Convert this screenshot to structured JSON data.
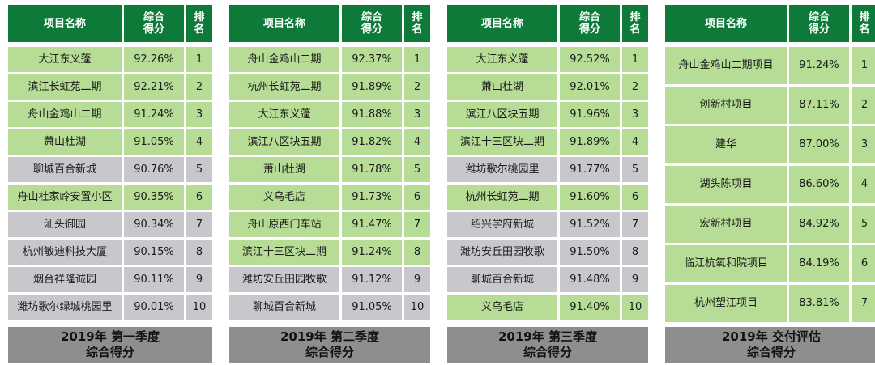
{
  "panels": [
    {
      "header": {
        "name": "项目名称",
        "score": "综合\n得分",
        "rank": "排\n名"
      },
      "rows": [
        {
          "name": "大江东义蓬",
          "score": "92.26%",
          "rank": "1",
          "color": "green"
        },
        {
          "name": "滨江长虹苑二期",
          "score": "92.21%",
          "rank": "2",
          "color": "green"
        },
        {
          "name": "舟山金鸡山二期",
          "score": "91.24%",
          "rank": "3",
          "color": "green"
        },
        {
          "name": "萧山杜湖",
          "score": "91.05%",
          "rank": "4",
          "color": "green"
        },
        {
          "name": "聊城百合新城",
          "score": "90.76%",
          "rank": "5",
          "color": "gray"
        },
        {
          "name": "舟山杜家岭安置小区",
          "score": "90.35%",
          "rank": "6",
          "color": "green"
        },
        {
          "name": "汕头御园",
          "score": "90.34%",
          "rank": "7",
          "color": "gray"
        },
        {
          "name": "杭州敏迪科技大厦",
          "score": "90.15%",
          "rank": "8",
          "color": "gray"
        },
        {
          "name": "烟台祥隆诚园",
          "score": "90.11%",
          "rank": "9",
          "color": "gray"
        },
        {
          "name": "潍坊歌尔绿城桃园里",
          "score": "90.01%",
          "rank": "10",
          "color": "gray"
        }
      ],
      "footer": {
        "line1": "2019年 第一季度",
        "line2": "综合得分"
      }
    },
    {
      "header": {
        "name": "项目名称",
        "score": "综合\n得分",
        "rank": "排\n名"
      },
      "rows": [
        {
          "name": "舟山金鸡山二期",
          "score": "92.37%",
          "rank": "1",
          "color": "green"
        },
        {
          "name": "杭州长虹苑二期",
          "score": "91.89%",
          "rank": "2",
          "color": "green"
        },
        {
          "name": "大江东义蓬",
          "score": "91.88%",
          "rank": "3",
          "color": "green"
        },
        {
          "name": "滨江八区块五期",
          "score": "91.82%",
          "rank": "4",
          "color": "green"
        },
        {
          "name": "萧山杜湖",
          "score": "91.78%",
          "rank": "5",
          "color": "green"
        },
        {
          "name": "义乌毛店",
          "score": "91.73%",
          "rank": "6",
          "color": "green"
        },
        {
          "name": "舟山原西门车站",
          "score": "91.47%",
          "rank": "7",
          "color": "green"
        },
        {
          "name": "滨江十三区块二期",
          "score": "91.24%",
          "rank": "8",
          "color": "green"
        },
        {
          "name": "潍坊安丘田园牧歌",
          "score": "91.12%",
          "rank": "9",
          "color": "gray"
        },
        {
          "name": "聊城百合新城",
          "score": "91.05%",
          "rank": "10",
          "color": "gray"
        }
      ],
      "footer": {
        "line1": "2019年 第二季度",
        "line2": "综合得分"
      }
    },
    {
      "header": {
        "name": "项目名称",
        "score": "综合\n得分",
        "rank": "排\n名"
      },
      "rows": [
        {
          "name": "大江东义蓬",
          "score": "92.52%",
          "rank": "1",
          "color": "green"
        },
        {
          "name": "萧山杜湖",
          "score": "92.01%",
          "rank": "2",
          "color": "green"
        },
        {
          "name": "滨江八区块五期",
          "score": "91.96%",
          "rank": "3",
          "color": "green"
        },
        {
          "name": "滨江十三区块二期",
          "score": "91.89%",
          "rank": "4",
          "color": "green"
        },
        {
          "name": "潍坊歌尔桃园里",
          "score": "91.77%",
          "rank": "5",
          "color": "gray"
        },
        {
          "name": "杭州长虹苑二期",
          "score": "91.60%",
          "rank": "6",
          "color": "green"
        },
        {
          "name": "绍兴学府新城",
          "score": "91.52%",
          "rank": "7",
          "color": "gray"
        },
        {
          "name": "潍坊安丘田园牧歌",
          "score": "91.50%",
          "rank": "8",
          "color": "gray"
        },
        {
          "name": "聊城百合新城",
          "score": "91.48%",
          "rank": "9",
          "color": "gray"
        },
        {
          "name": "义乌毛店",
          "score": "91.40%",
          "rank": "10",
          "color": "green"
        }
      ],
      "footer": {
        "line1": "2019年 第三季度",
        "line2": "综合得分"
      }
    },
    {
      "header": {
        "name": "项目名称",
        "score": "综合\n得分",
        "rank": "排\n名"
      },
      "rows": [
        {
          "name": "舟山金鸡山二期项目",
          "score": "91.24%",
          "rank": "1",
          "color": "green"
        },
        {
          "name": "创新村项目",
          "score": "87.11%",
          "rank": "2",
          "color": "green"
        },
        {
          "name": "建华",
          "score": "87.00%",
          "rank": "3",
          "color": "green"
        },
        {
          "name": "湖头陈项目",
          "score": "86.60%",
          "rank": "4",
          "color": "green"
        },
        {
          "name": "宏新村项目",
          "score": "84.92%",
          "rank": "5",
          "color": "green"
        },
        {
          "name": "临江杭氧和院项目",
          "score": "84.19%",
          "rank": "6",
          "color": "green"
        },
        {
          "name": "杭州望江项目",
          "score": "83.81%",
          "rank": "7",
          "color": "green"
        }
      ],
      "footer": {
        "line1": "2019年 交付评估",
        "line2": "综合得分"
      }
    }
  ]
}
